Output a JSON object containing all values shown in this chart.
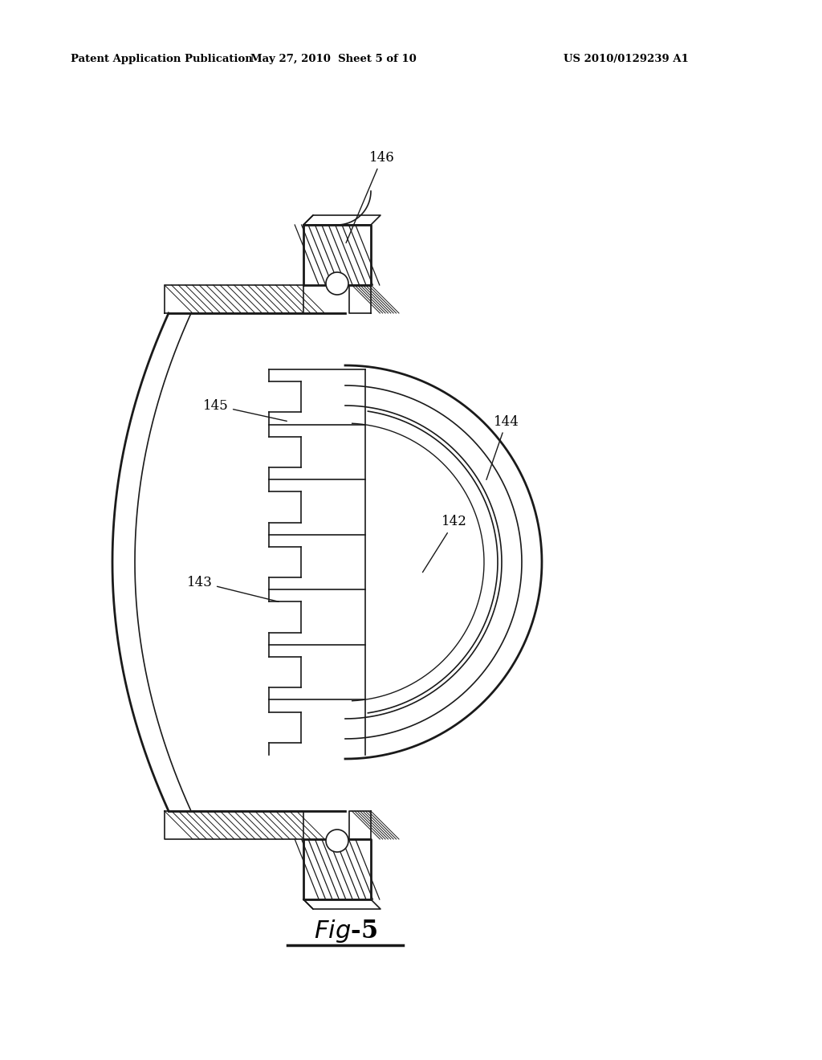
{
  "header_left": "Patent Application Publication",
  "header_center": "May 27, 2010  Sheet 5 of 10",
  "header_right": "US 2010/0129239 A1",
  "fig_label": "Fig-5",
  "bg_color": "#ffffff",
  "line_color": "#1a1a1a",
  "lw_main": 1.2,
  "lw_thick": 2.0,
  "lw_thin": 0.7
}
